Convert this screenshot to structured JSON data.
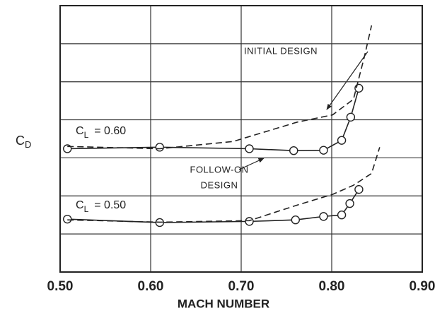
{
  "chart_data": {
    "type": "line",
    "x_label": "MACH NUMBER",
    "y_label": {
      "main": "C",
      "sub": "D"
    },
    "xlim": [
      0.5,
      0.9
    ],
    "xticks": [
      {
        "value": 0.5,
        "label": "0.50"
      },
      {
        "value": 0.6,
        "label": "0.60"
      },
      {
        "value": 0.7,
        "label": "0.70"
      },
      {
        "value": 0.8,
        "label": "0.80"
      },
      {
        "value": 0.9,
        "label": "0.90"
      }
    ],
    "ylim": [
      0,
      7
    ],
    "yticks": [
      0,
      1,
      2,
      3,
      4,
      5,
      6,
      7
    ],
    "grid": true,
    "series": [
      {
        "color": "#222222",
        "dashed": false,
        "markers": true,
        "x": [
          0.508,
          0.61,
          0.709,
          0.758,
          0.791,
          0.811,
          0.821,
          0.83
        ],
        "values": [
          3.24,
          3.28,
          3.24,
          3.19,
          3.2,
          3.46,
          4.07,
          4.83
        ]
      },
      {
        "color": "#222222",
        "dashed": true,
        "markers": false,
        "x": [
          0.508,
          0.61,
          0.691,
          0.762,
          0.801,
          0.824,
          0.836,
          0.844
        ],
        "values": [
          3.3,
          3.24,
          3.43,
          3.94,
          4.13,
          4.54,
          5.65,
          6.48
        ]
      },
      {
        "color": "#222222",
        "dashed": false,
        "markers": true,
        "x": [
          0.508,
          0.61,
          0.709,
          0.76,
          0.791,
          0.811,
          0.82,
          0.83
        ],
        "values": [
          1.39,
          1.3,
          1.33,
          1.37,
          1.46,
          1.5,
          1.8,
          2.17
        ]
      },
      {
        "color": "#222222",
        "dashed": true,
        "markers": false,
        "x": [
          0.508,
          0.61,
          0.709,
          0.762,
          0.801,
          0.824,
          0.844,
          0.853
        ],
        "values": [
          1.37,
          1.31,
          1.35,
          1.76,
          2.04,
          2.28,
          2.59,
          3.28
        ]
      }
    ],
    "annotations": {
      "initial": "INITIAL DESIGN",
      "follow_on": [
        "FOLLOW-ON",
        "DESIGN"
      ],
      "cl_high": {
        "main": "C",
        "sub": "L",
        "rest": "= 0.60"
      },
      "cl_low": {
        "main": "C",
        "sub": "L",
        "rest": "= 0.50"
      }
    }
  }
}
